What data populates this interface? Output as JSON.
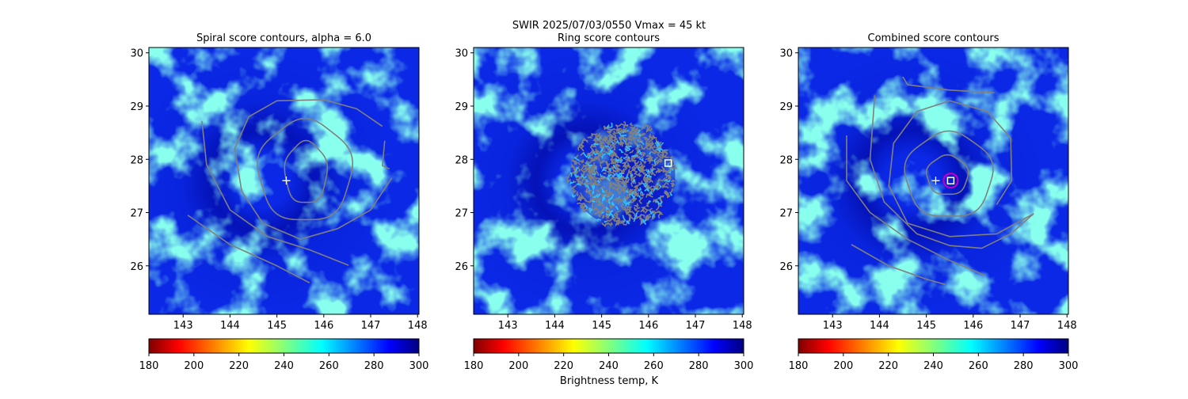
{
  "chart_data": {
    "type": "heatmap",
    "suptitle": "SWIR  2025/07/03/0550    Vmax = 45 kt",
    "colorbar_label": "Brightness temp, K",
    "colormap": "jet_r",
    "colorbar_range": [
      180,
      300
    ],
    "colorbar_ticks": [
      "180",
      "200",
      "220",
      "240",
      "260",
      "280",
      "300"
    ],
    "colormap_stops": [
      "#800000",
      "#ff0000",
      "#ffff00",
      "#00ffff",
      "#0000ff",
      "#000080"
    ],
    "xlim": [
      142.27,
      148.03
    ],
    "ylim": [
      25.09,
      30.1
    ],
    "x_ticks": [
      "143",
      "144",
      "145",
      "146",
      "147",
      "148"
    ],
    "y_ticks": [
      "26",
      "27",
      "28",
      "29",
      "30"
    ],
    "contour_color": "#808080",
    "panels": [
      {
        "title": "Spiral score contours, alpha =  6.0",
        "first_guess": [
          145.2,
          27.6
        ],
        "contours": [
          {
            "ellipse": [
              145.62,
              27.75,
              0.45,
              0.58
            ]
          },
          {
            "ellipse": [
              145.6,
              27.78,
              1.0,
              0.95
            ]
          },
          {
            "line": [
              [
                147.45,
                27.65
              ],
              [
                147.0,
                27.05
              ],
              [
                146.3,
                26.7
              ],
              [
                145.5,
                26.5
              ],
              [
                144.7,
                26.8
              ],
              [
                144.25,
                27.4
              ],
              [
                144.1,
                28.2
              ],
              [
                144.4,
                28.8
              ],
              [
                145.0,
                29.1
              ],
              [
                146.0,
                29.12
              ],
              [
                146.7,
                28.95
              ],
              [
                147.25,
                28.62
              ]
            ]
          },
          {
            "line": [
              [
                143.4,
                28.72
              ],
              [
                143.5,
                27.9
              ],
              [
                144.0,
                27.05
              ],
              [
                144.8,
                26.55
              ],
              [
                145.7,
                26.3
              ],
              [
                146.53,
                26.01
              ]
            ]
          },
          {
            "line": [
              [
                143.1,
                26.95
              ],
              [
                144.0,
                26.4
              ],
              [
                145.0,
                26.0
              ],
              [
                145.7,
                25.68
              ]
            ]
          },
          {
            "line": [
              [
                147.3,
                28.35
              ],
              [
                147.25,
                27.88
              ],
              [
                147.4,
                27.82
              ]
            ]
          }
        ]
      },
      {
        "title": "Ring score contours",
        "first_guess": null,
        "ring_center": [
          145.45,
          27.7
        ],
        "ring_radius": [
          1.12,
          0.95
        ],
        "best_fix_square": [
          146.42,
          27.93
        ]
      },
      {
        "title": "Combined score contours",
        "first_guess": [
          145.2,
          27.6
        ],
        "best_fix_square": [
          145.52,
          27.6
        ],
        "best_fix_circle": [
          145.52,
          27.6
        ],
        "contours": [
          {
            "ellipse": [
              145.45,
              27.7,
              0.44,
              0.37
            ]
          },
          {
            "ellipse": [
              145.48,
              27.7,
              0.93,
              0.8
            ]
          },
          {
            "line": [
              [
                147.29,
                26.98
              ],
              [
                146.5,
                26.6
              ],
              [
                145.5,
                26.55
              ],
              [
                144.6,
                26.8
              ],
              [
                144.2,
                27.5
              ],
              [
                144.3,
                28.3
              ],
              [
                144.8,
                28.9
              ],
              [
                145.5,
                29.1
              ],
              [
                146.3,
                28.9
              ],
              [
                146.8,
                28.4
              ],
              [
                146.82,
                27.6
              ],
              [
                146.5,
                27.15
              ]
            ]
          },
          {
            "line": [
              [
                143.9,
                29.2
              ],
              [
                143.8,
                28.0
              ],
              [
                144.1,
                27.2
              ],
              [
                144.8,
                26.6
              ],
              [
                145.5,
                26.38
              ],
              [
                146.18,
                26.33
              ],
              [
                146.8,
                26.6
              ],
              [
                147.29,
                26.98
              ]
            ]
          },
          {
            "line": [
              [
                143.3,
                28.45
              ],
              [
                143.3,
                27.6
              ],
              [
                143.8,
                27.0
              ],
              [
                144.6,
                26.5
              ],
              [
                145.5,
                26.1
              ],
              [
                146.25,
                25.82
              ]
            ]
          },
          {
            "line": [
              [
                143.4,
                26.4
              ],
              [
                144.2,
                26.0
              ],
              [
                145.0,
                25.75
              ],
              [
                145.4,
                25.65
              ]
            ]
          },
          {
            "line": [
              [
                144.5,
                29.55
              ],
              [
                144.6,
                29.4
              ],
              [
                145.5,
                29.3
              ],
              [
                146.45,
                29.25
              ]
            ]
          }
        ]
      }
    ]
  }
}
